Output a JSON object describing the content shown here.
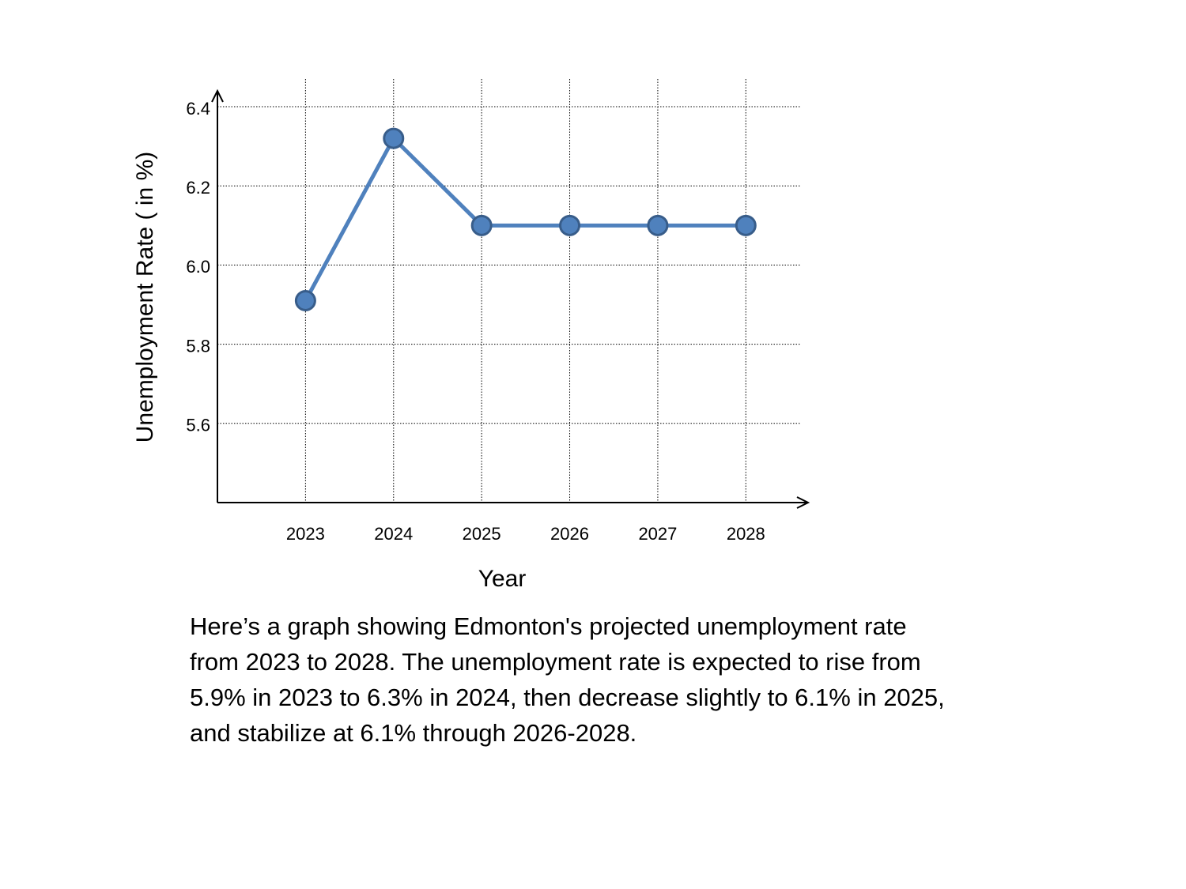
{
  "chart_data": {
    "type": "line",
    "x_label": "Year",
    "y_label": "Unemployment Rate ( in %)",
    "x": [
      2023,
      2024,
      2025,
      2026,
      2027,
      2028
    ],
    "xlim": [
      2022,
      2028.5
    ],
    "xticks": [
      2023,
      2024,
      2025,
      2026,
      2027,
      2028
    ],
    "ylim": [
      5.4,
      6.44
    ],
    "yticks": [
      {
        "value": 5.6,
        "label": "5.6"
      },
      {
        "value": 5.8,
        "label": "5.8"
      },
      {
        "value": 6.0,
        "label": "6.0"
      },
      {
        "value": 6.2,
        "label": "6.2"
      },
      {
        "value": 6.4,
        "label": "6.4"
      }
    ],
    "grid": true,
    "series": [
      {
        "color": "#4f81bd",
        "values": [
          5.91,
          6.32,
          6.1,
          6.1,
          6.1,
          6.1
        ]
      }
    ],
    "description": "Here’s a graph showing Edmonton's projected unemployment rate from 2023 to 2028. The unemployment rate is expected to rise from 5.9% in 2023 to 6.3% in 2024, then decrease slightly to 6.1% in 2025, and stabilize at 6.1% through 2026-2028."
  }
}
